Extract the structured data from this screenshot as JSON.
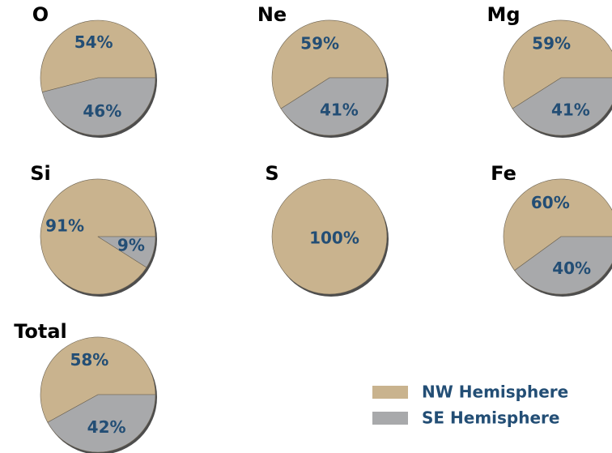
{
  "chart_data": [
    {
      "type": "pie",
      "title": "O",
      "categories": [
        "NW Hemisphere",
        "SE Hemisphere"
      ],
      "values": [
        54,
        46
      ],
      "value_labels": [
        "54%",
        "46%"
      ],
      "colors": [
        "#c9b38e",
        "#a8a9ab"
      ]
    },
    {
      "type": "pie",
      "title": "Ne",
      "categories": [
        "NW Hemisphere",
        "SE Hemisphere"
      ],
      "values": [
        59,
        41
      ],
      "value_labels": [
        "59%",
        "41%"
      ],
      "colors": [
        "#c9b38e",
        "#a8a9ab"
      ]
    },
    {
      "type": "pie",
      "title": "Mg",
      "categories": [
        "NW Hemisphere",
        "SE Hemisphere"
      ],
      "values": [
        59,
        41
      ],
      "value_labels": [
        "59%",
        "41%"
      ],
      "colors": [
        "#c9b38e",
        "#a8a9ab"
      ]
    },
    {
      "type": "pie",
      "title": "Si",
      "categories": [
        "NW Hemisphere",
        "SE Hemisphere"
      ],
      "values": [
        91,
        9
      ],
      "value_labels": [
        "91%",
        "9%"
      ],
      "colors": [
        "#c9b38e",
        "#a8a9ab"
      ]
    },
    {
      "type": "pie",
      "title": "S",
      "categories": [
        "NW Hemisphere"
      ],
      "values": [
        100
      ],
      "value_labels": [
        "100%"
      ],
      "colors": [
        "#c9b38e"
      ]
    },
    {
      "type": "pie",
      "title": "Fe",
      "categories": [
        "NW Hemisphere",
        "SE Hemisphere"
      ],
      "values": [
        60,
        40
      ],
      "value_labels": [
        "60%",
        "40%"
      ],
      "colors": [
        "#c9b38e",
        "#a8a9ab"
      ]
    },
    {
      "type": "pie",
      "title": "Total",
      "categories": [
        "NW Hemisphere",
        "SE Hemisphere"
      ],
      "values": [
        58,
        42
      ],
      "value_labels": [
        "58%",
        "42%"
      ],
      "colors": [
        "#c9b38e",
        "#a8a9ab"
      ]
    }
  ]
}
